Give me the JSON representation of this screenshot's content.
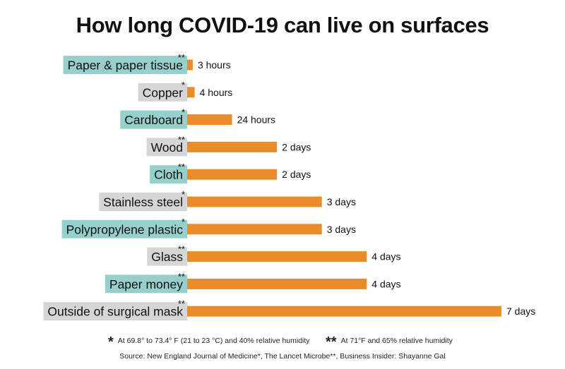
{
  "chart_data": {
    "type": "bar",
    "orientation": "horizontal",
    "title": "How long COVID-19 can live on surfaces",
    "unit": "hours",
    "categories": [
      "Paper & paper tissue",
      "Copper",
      "Cardboard",
      "Wood",
      "Cloth",
      "Stainless steel",
      "Polypropylene plastic",
      "Glass",
      "Paper money",
      "Outside of surgical mask"
    ],
    "markers": [
      "**",
      "*",
      "*",
      "**",
      "**",
      "*",
      "*",
      "**",
      "**",
      "**"
    ],
    "values": [
      3,
      4,
      24,
      48,
      48,
      72,
      72,
      96,
      96,
      168
    ],
    "data_labels": [
      "3 hours",
      "4 hours",
      "24 hours",
      "2 days",
      "2 days",
      "3 days",
      "3 days",
      "4 days",
      "4 days",
      "7 days"
    ],
    "label_colors": [
      "#96cfcb",
      "#d6d6d6",
      "#96cfcb",
      "#d6d6d6",
      "#96cfcb",
      "#d6d6d6",
      "#96cfcb",
      "#d6d6d6",
      "#96cfcb",
      "#d6d6d6"
    ],
    "bar_color": "#ea8c2a",
    "grid": false,
    "legend": "none"
  },
  "footnotes": [
    {
      "symbol": "*",
      "text": "At 69.8° to 73.4° F (21 to 23 °C) and 40% relative humidity"
    },
    {
      "symbol": "**",
      "text": "At 71°F and 65% relative humidity"
    }
  ],
  "source": "Source: New England Journal of Medicine*, The Lancet Microbe**, Business Insider: Shayanne Gal"
}
